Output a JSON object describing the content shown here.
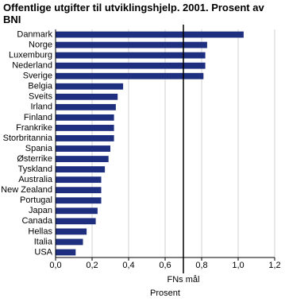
{
  "chart_data": {
    "type": "hbar",
    "title": "Offentlige utgifter til utviklingshjelp. 2001. Prosent av BNI",
    "x_label": "Prosent",
    "categories": [
      "Danmark",
      "Norge",
      "Luxemburg",
      "Nederland",
      "Sverige",
      "Belgia",
      "Sveits",
      "Irland",
      "Finland",
      "Frankrike",
      "Storbritannia",
      "Spania",
      "Østerrike",
      "Tyskland",
      "Australia",
      "New Zealand",
      "Portugal",
      "Japan",
      "Canada",
      "Hellas",
      "Italia",
      "USA"
    ],
    "values": [
      1.03,
      0.83,
      0.82,
      0.82,
      0.81,
      0.37,
      0.34,
      0.33,
      0.32,
      0.32,
      0.32,
      0.3,
      0.29,
      0.27,
      0.25,
      0.25,
      0.25,
      0.23,
      0.22,
      0.17,
      0.15,
      0.11
    ],
    "color": "#1f2f80",
    "xlim": [
      0,
      1.2
    ],
    "xticks": [
      {
        "value": 0,
        "label": "0,0"
      },
      {
        "value": 0.2,
        "label": "0,2"
      },
      {
        "value": 0.4,
        "label": "0,4"
      },
      {
        "value": 0.6,
        "label": "0,6"
      },
      {
        "value": 0.8,
        "label": "0,8"
      },
      {
        "value": 1.0,
        "label": "1,0"
      },
      {
        "value": 1.2,
        "label": "1,2"
      }
    ],
    "grid": true,
    "reference_line": {
      "value": 0.7,
      "label": "FNs mål"
    }
  }
}
